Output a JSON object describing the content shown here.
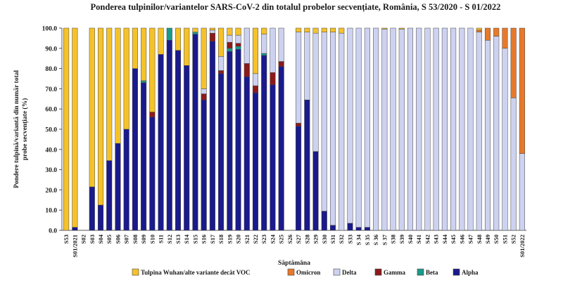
{
  "chart_data": {
    "type": "bar",
    "stacked": true,
    "percent": true,
    "title": "Ponderea tulpinilor/variantelor SARS-CoV-2 din totalul probelor secvențiate, România, S 53/2020 - S 01/2022",
    "xlabel": "Săptămâna",
    "ylabel_lines": [
      "Pondere tulpină/variantă  din număr total",
      "probe secvențiate (%)"
    ],
    "ylim": [
      0,
      100
    ],
    "yticks": [
      "0.0",
      "10.0",
      "20.0",
      "30.0",
      "40.0",
      "50.0",
      "60.0",
      "70.0",
      "80.0",
      "90.0",
      "100.0"
    ],
    "legend_position": "bottom",
    "categories": [
      "S53",
      "S01/2021",
      "S02",
      "S03",
      "S04",
      "S05",
      "S06",
      "S07",
      "S08",
      "S09",
      "S10",
      "S11",
      "S12",
      "S13",
      "S14",
      "S15",
      "S16",
      "S17",
      "S18",
      "S19",
      "S20",
      "S21",
      "S22",
      "S23",
      "S24",
      "S25",
      "S26",
      "S27",
      "S28",
      "S29",
      "S30",
      "S31",
      "S32",
      "S33",
      "S34",
      "S35",
      "S36",
      "S37",
      "S38",
      "S39",
      "S40",
      "S41",
      "S42",
      "S43",
      "S44",
      "S45",
      "S46",
      "S47",
      "S48",
      "S49",
      "S50",
      "S51",
      "S52",
      "S01/2022"
    ],
    "tick_labels": [
      "S53",
      "S01/2021",
      "S02",
      "S03",
      "S04",
      "S05",
      "S06",
      "S07",
      "S08",
      "S09",
      "S10",
      "S11",
      "S12",
      "S13",
      "S14",
      "S15",
      "S16",
      "S17",
      "S18",
      "S19",
      "S20",
      "S21",
      "S22",
      "S23",
      "S24",
      "S25",
      "S26",
      "S27",
      "S28",
      "S29",
      "S30",
      "S31",
      "S32",
      "S33",
      "S 34",
      "S 35",
      "S 36",
      "S 37",
      "S38",
      "S39",
      "S40",
      "S41",
      "S42",
      "S43",
      "S44",
      "S45",
      "S46",
      "S47",
      "S48",
      "S49",
      "S50",
      "S51",
      "S52",
      "S01/2022"
    ],
    "series": [
      {
        "name": "Alpha",
        "color": "#1a1a8c",
        "values": [
          0,
          1.5,
          0,
          21.5,
          12.5,
          34.5,
          43,
          50,
          80,
          73,
          56,
          87,
          94,
          89,
          81.5,
          97,
          64.5,
          93.5,
          77.5,
          88.5,
          89.5,
          76,
          68,
          86.5,
          72,
          81,
          0,
          51.5,
          64.5,
          39,
          9.5,
          2.5,
          0,
          3.5,
          1.5,
          1.5,
          0,
          0,
          0,
          0,
          0,
          0,
          0,
          0,
          0,
          0,
          0,
          0,
          0,
          0,
          0,
          0,
          0,
          0
        ]
      },
      {
        "name": "Beta",
        "color": "#1a9a8a",
        "values": [
          0,
          0,
          0,
          0,
          0,
          0,
          0,
          0,
          0,
          1,
          0,
          0,
          6,
          0,
          0,
          1,
          0,
          0,
          0,
          1.5,
          1.5,
          0,
          0,
          1,
          0,
          0,
          0,
          0,
          0,
          0,
          0,
          0,
          0,
          0,
          0,
          0,
          0,
          0,
          0,
          0,
          0,
          0,
          0,
          0,
          0,
          0,
          0,
          0,
          0,
          0,
          0,
          0,
          0,
          0
        ]
      },
      {
        "name": "Gamma",
        "color": "#8b1a1a",
        "values": [
          0,
          0,
          0,
          0,
          0,
          0,
          0,
          0,
          0,
          0,
          2.5,
          0,
          0,
          0,
          0,
          0,
          3,
          4,
          1.5,
          3,
          1.5,
          6.5,
          3.5,
          0,
          6,
          2.5,
          0,
          1.5,
          0,
          0,
          0,
          0,
          0,
          0,
          0,
          0,
          0,
          0,
          0,
          0,
          0,
          0,
          0,
          0,
          0,
          0,
          0,
          0,
          0,
          0,
          0,
          0,
          0,
          0
        ]
      },
      {
        "name": "Delta",
        "color": "#cdd2f0",
        "values": [
          0,
          0,
          0,
          0,
          0,
          0,
          0,
          0,
          0,
          0,
          0,
          0,
          0,
          0,
          0,
          0,
          2.5,
          1.5,
          7,
          3.5,
          4,
          17.5,
          6,
          9.5,
          22,
          16.5,
          0,
          45,
          33.5,
          58.5,
          88.5,
          95.5,
          97.5,
          96.5,
          98.5,
          98.5,
          100,
          99.5,
          100,
          99.5,
          100,
          100,
          100,
          100,
          100,
          100,
          100,
          100,
          98,
          94,
          96,
          90,
          65.5,
          38
        ]
      },
      {
        "name": "Omicron",
        "color": "#e8792a",
        "values": [
          0,
          0,
          0,
          0,
          0,
          0,
          0,
          0,
          0,
          0,
          0,
          0,
          0,
          0,
          0,
          0,
          0,
          0,
          0,
          0,
          0,
          0,
          0,
          0,
          0,
          0,
          0,
          0,
          0,
          0,
          0,
          0,
          0,
          0,
          0,
          0,
          0,
          0,
          0,
          0,
          0,
          0,
          0,
          0,
          0,
          0,
          0,
          0,
          1,
          6,
          4,
          10,
          34.5,
          62
        ]
      },
      {
        "name": "Tulpina Wuhan/alte variante decât VOC",
        "color": "#f5c22a",
        "values": [
          100,
          98.5,
          0,
          78.5,
          87.5,
          65.5,
          57,
          50,
          20,
          26,
          41.5,
          13,
          0,
          11,
          18.5,
          2,
          30,
          1,
          14,
          3.5,
          3.5,
          0,
          22.5,
          3,
          0,
          0,
          0,
          2,
          2,
          2.5,
          2,
          2,
          2.5,
          0,
          0,
          0,
          0,
          0.5,
          0,
          0.5,
          0,
          0,
          0,
          0,
          0,
          0,
          0,
          0,
          1,
          0,
          0,
          0,
          0,
          0
        ]
      }
    ],
    "legend_order": [
      "Tulpina Wuhan/alte variante decât VOC",
      "Omicron",
      "Delta",
      "Gamma",
      "Beta",
      "Alpha"
    ]
  }
}
